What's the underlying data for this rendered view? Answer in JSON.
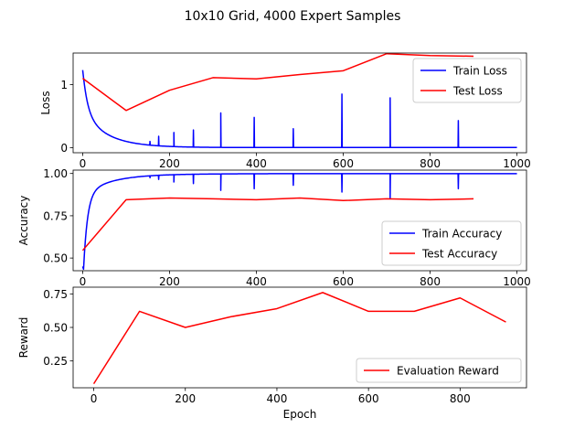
{
  "figure_title": "10x10 Grid, 4000 Expert Samples",
  "colors": {
    "train": "#0000ff",
    "test": "#ff0000",
    "axis": "#000000"
  },
  "chart_data": [
    {
      "id": "loss",
      "type": "line",
      "xlabel": "",
      "ylabel": "Loss",
      "xlim": [
        -22,
        1022
      ],
      "ylim": [
        -0.08,
        1.5
      ],
      "xticks": [
        0,
        200,
        400,
        600,
        800,
        1000
      ],
      "xtick_labels": [
        "0",
        "200",
        "400",
        "600",
        "800",
        "1000"
      ],
      "yticks": [
        0,
        1
      ],
      "ytick_labels": [
        "0",
        "1"
      ],
      "legend_position": "upper-right",
      "series": [
        {
          "name": "Train Loss",
          "color_key": "train",
          "curve": "loss",
          "spikes": [
            {
              "x": 155,
              "y": 0.1
            },
            {
              "x": 175,
              "y": 0.18
            },
            {
              "x": 210,
              "y": 0.24
            },
            {
              "x": 255,
              "y": 0.28
            },
            {
              "x": 318,
              "y": 0.55
            },
            {
              "x": 395,
              "y": 0.48
            },
            {
              "x": 485,
              "y": 0.3
            },
            {
              "x": 597,
              "y": 0.85
            },
            {
              "x": 708,
              "y": 0.79
            },
            {
              "x": 865,
              "y": 0.43
            }
          ]
        },
        {
          "name": "Test Loss",
          "color_key": "test",
          "x": [
            0,
            100,
            200,
            300,
            400,
            500,
            600,
            700,
            800,
            900
          ],
          "y": [
            1.1,
            0.59,
            0.91,
            1.11,
            1.09,
            1.16,
            1.22,
            1.49,
            1.46,
            1.45
          ]
        }
      ]
    },
    {
      "id": "accuracy",
      "type": "line",
      "xlabel": "",
      "ylabel": "Accuracy",
      "xlim": [
        -22,
        1022
      ],
      "ylim": [
        0.425,
        1.02
      ],
      "xticks": [
        0,
        200,
        400,
        600,
        800,
        1000
      ],
      "xtick_labels": [
        "0",
        "200",
        "400",
        "600",
        "800",
        "1000"
      ],
      "yticks": [
        0.5,
        0.75,
        1.0
      ],
      "ytick_labels": [
        "0.50",
        "0.75",
        "1.00"
      ],
      "legend_position": "lower-right",
      "series": [
        {
          "name": "Train Accuracy",
          "color_key": "train",
          "curve": "accuracy",
          "spikes": [
            {
              "x": 155,
              "y": 0.975
            },
            {
              "x": 175,
              "y": 0.965
            },
            {
              "x": 210,
              "y": 0.95
            },
            {
              "x": 255,
              "y": 0.94
            },
            {
              "x": 318,
              "y": 0.9
            },
            {
              "x": 395,
              "y": 0.91
            },
            {
              "x": 485,
              "y": 0.93
            },
            {
              "x": 597,
              "y": 0.89
            },
            {
              "x": 708,
              "y": 0.85
            },
            {
              "x": 865,
              "y": 0.91
            }
          ]
        },
        {
          "name": "Test Accuracy",
          "color_key": "test",
          "x": [
            0,
            100,
            200,
            300,
            400,
            500,
            600,
            700,
            800,
            900
          ],
          "y": [
            0.545,
            0.845,
            0.855,
            0.85,
            0.845,
            0.855,
            0.84,
            0.85,
            0.845,
            0.85
          ]
        }
      ]
    },
    {
      "id": "reward",
      "type": "line",
      "xlabel": "Epoch",
      "ylabel": "Reward",
      "xlim": [
        -45,
        945
      ],
      "ylim": [
        0.05,
        0.8
      ],
      "xticks": [
        0,
        200,
        400,
        600,
        800
      ],
      "xtick_labels": [
        "0",
        "200",
        "400",
        "600",
        "800"
      ],
      "yticks": [
        0.25,
        0.5,
        0.75
      ],
      "ytick_labels": [
        "0.25",
        "0.50",
        "0.75"
      ],
      "legend_position": "lower-right",
      "series": [
        {
          "name": "Evaluation Reward",
          "color_key": "test",
          "x": [
            0,
            100,
            200,
            300,
            400,
            500,
            600,
            700,
            800,
            900
          ],
          "y": [
            0.08,
            0.62,
            0.5,
            0.58,
            0.64,
            0.76,
            0.62,
            0.62,
            0.72,
            0.54
          ]
        }
      ]
    }
  ]
}
